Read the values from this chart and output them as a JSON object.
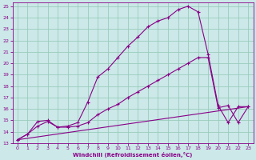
{
  "xlabel": "Windchill (Refroidissement éolien,°C)",
  "bg_color": "#cce8e8",
  "grid_color": "#99ccbb",
  "line_color": "#880088",
  "xlim_min": -0.5,
  "xlim_max": 23.5,
  "ylim_min": 13,
  "ylim_max": 25.3,
  "xticks": [
    0,
    1,
    2,
    3,
    4,
    5,
    6,
    7,
    8,
    9,
    10,
    11,
    12,
    13,
    14,
    15,
    16,
    17,
    18,
    19,
    20,
    21,
    22,
    23
  ],
  "yticks": [
    13,
    14,
    15,
    16,
    17,
    18,
    19,
    20,
    21,
    22,
    23,
    24,
    25
  ],
  "series1_x": [
    0,
    1,
    2,
    3,
    4,
    5,
    6,
    7,
    8,
    9,
    10,
    11,
    12,
    13,
    14,
    15,
    16,
    17,
    18,
    19,
    20,
    21,
    22,
    23
  ],
  "series1_y": [
    13.3,
    13.8,
    14.5,
    14.9,
    14.4,
    14.5,
    14.8,
    16.6,
    18.8,
    19.5,
    20.5,
    21.5,
    22.3,
    23.2,
    23.7,
    24.0,
    24.7,
    25.0,
    24.5,
    20.8,
    16.3,
    14.8,
    16.2,
    16.2
  ],
  "series2_x": [
    0,
    1,
    2,
    3,
    4,
    5,
    6,
    7,
    8,
    9,
    10,
    11,
    12,
    13,
    14,
    15,
    16,
    17,
    18,
    19,
    20,
    21,
    22,
    23
  ],
  "series2_y": [
    13.3,
    13.8,
    14.9,
    15.0,
    14.4,
    14.4,
    14.5,
    14.8,
    15.5,
    16.0,
    16.4,
    17.0,
    17.5,
    18.0,
    18.5,
    19.0,
    19.5,
    20.0,
    20.5,
    20.5,
    16.1,
    16.3,
    14.8,
    16.2
  ],
  "series3_x": [
    0,
    23
  ],
  "series3_y": [
    13.3,
    16.2
  ]
}
